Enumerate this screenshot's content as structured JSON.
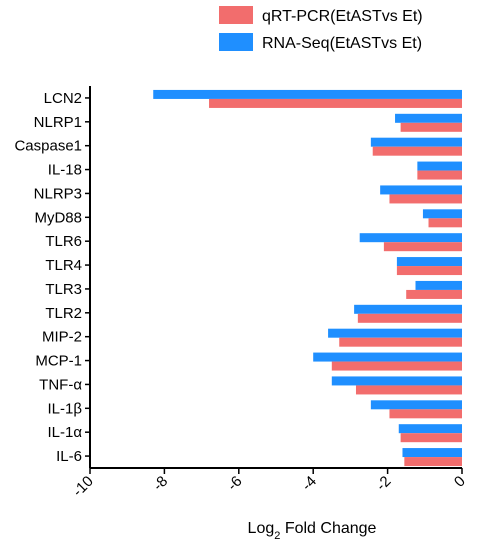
{
  "chart_data": {
    "type": "bar",
    "orientation": "horizontal",
    "categories": [
      "LCN2",
      "NLRP1",
      "Caspase1",
      "IL-18",
      "NLRP3",
      "MyD88",
      "TLR6",
      "TLR4",
      "TLR3",
      "TLR2",
      "MIP-2",
      "MCP-1",
      "TNF-α",
      "IL-1β",
      "IL-1α",
      "IL-6"
    ],
    "series": [
      {
        "name": "qRT-PCR(EtASTvs Et)",
        "color": "#f26d6d",
        "values": [
          -6.8,
          -1.65,
          -2.4,
          -1.2,
          -1.95,
          -0.9,
          -2.1,
          -1.75,
          -1.5,
          -2.8,
          -3.3,
          -3.5,
          -2.85,
          -1.95,
          -1.65,
          -1.55
        ]
      },
      {
        "name": "RNA-Seq(EtASTvs Et)",
        "color": "#1f8fff",
        "values": [
          -8.3,
          -1.8,
          -2.45,
          -1.2,
          -2.2,
          -1.05,
          -2.75,
          -1.75,
          -1.25,
          -2.9,
          -3.6,
          -4.0,
          -3.5,
          -2.45,
          -1.7,
          -1.6
        ]
      }
    ],
    "title": "",
    "xlabel": "Log",
    "xlabel_sub": "2",
    "xlabel_tail": " Fold Change",
    "xlim": [
      -10,
      0
    ],
    "xticks": [
      -10,
      -8,
      -6,
      -4,
      -2,
      0
    ],
    "xtick_labels": [
      "-10",
      "-8",
      "-6",
      "-4",
      "-2",
      "0"
    ],
    "grid": false,
    "legend_placement": "top-right"
  }
}
